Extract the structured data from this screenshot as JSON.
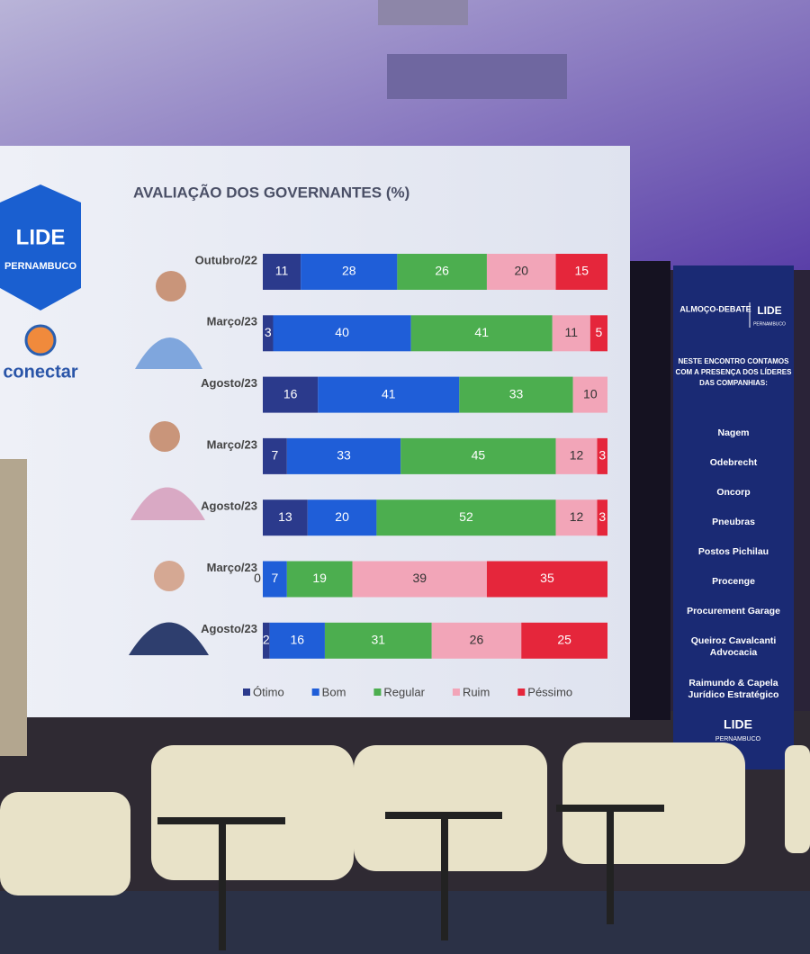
{
  "chart_data": {
    "type": "bar",
    "orientation": "horizontal",
    "stacked": true,
    "title": "AVALIAÇÃO DOS GOVERNANTES (%)",
    "categories": [
      "Outubro/22",
      "Março/23",
      "Agosto/23",
      "Março/23",
      "Agosto/23",
      "Março/23",
      "Agosto/23"
    ],
    "series": [
      {
        "name": "Ótimo",
        "color": "#2b3a8c",
        "values": [
          11,
          3,
          16,
          7,
          13,
          0,
          2
        ]
      },
      {
        "name": "Bom",
        "color": "#1f5ed8",
        "values": [
          28,
          40,
          41,
          33,
          20,
          7,
          16
        ]
      },
      {
        "name": "Regular",
        "color": "#4cae4f",
        "values": [
          26,
          41,
          33,
          45,
          52,
          19,
          31
        ]
      },
      {
        "name": "Ruim",
        "color": "#f2a5b8",
        "values": [
          20,
          11,
          10,
          12,
          12,
          39,
          26
        ]
      },
      {
        "name": "Péssimo",
        "color": "#e5263b",
        "values": [
          15,
          5,
          null,
          3,
          3,
          35,
          25
        ]
      }
    ],
    "legend": "bottom"
  },
  "screen": {
    "logo": "LIDE",
    "logo_sub": "PERNAMBUCO",
    "partner": "conectar"
  },
  "banner": {
    "event": "ALMOÇO-DEBATE",
    "brand": "LIDE",
    "brand_sub": "PERNAMBUCO",
    "intro": [
      "NESTE ENCONTRO CONTAMOS",
      "COM A PRESENÇA DOS LÍDERES",
      "DAS COMPANHIAS:"
    ],
    "companies": [
      [
        "Nagem"
      ],
      [
        "Odebrecht"
      ],
      [
        "Oncorp"
      ],
      [
        "Pneubras"
      ],
      [
        "Postos Pichilau"
      ],
      [
        "Procenge"
      ],
      [
        "Procurement Garage"
      ],
      [
        "Queiroz Cavalcanti",
        "Advocacia"
      ],
      [
        "Raimundo & Capela",
        "Jurídico Estratégico"
      ]
    ],
    "footer": "LIDE",
    "footer_sub": "PERNAMBUCO"
  }
}
